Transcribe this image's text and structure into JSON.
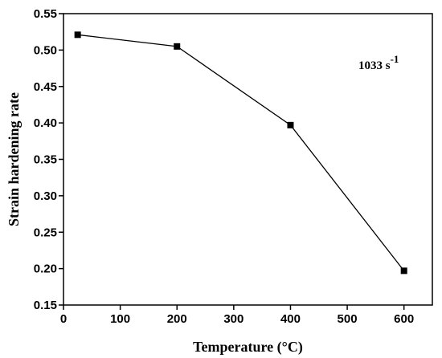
{
  "chart_data": {
    "type": "line",
    "xlabel": "Temperature (°C)",
    "ylabel": "Strain hardening rate",
    "xlim": [
      0,
      650
    ],
    "ylim": [
      0.15,
      0.55
    ],
    "xticks": [
      0,
      100,
      200,
      300,
      400,
      500,
      600
    ],
    "yticks": [
      0.15,
      0.2,
      0.25,
      0.3,
      0.35,
      0.4,
      0.45,
      0.5,
      0.55
    ],
    "xtick_labels": [
      "0",
      "100",
      "200",
      "300",
      "400",
      "500",
      "600"
    ],
    "ytick_labels": [
      "0.15",
      "0.20",
      "0.25",
      "0.30",
      "0.35",
      "0.40",
      "0.45",
      "0.50",
      "0.55"
    ],
    "annotation": {
      "value": "1033 s",
      "superscript": "-1"
    },
    "grid": false,
    "series": [
      {
        "x": [
          25,
          200,
          400,
          600
        ],
        "y": [
          0.521,
          0.505,
          0.397,
          0.197
        ],
        "marker": "square",
        "color": "#000000"
      }
    ]
  }
}
